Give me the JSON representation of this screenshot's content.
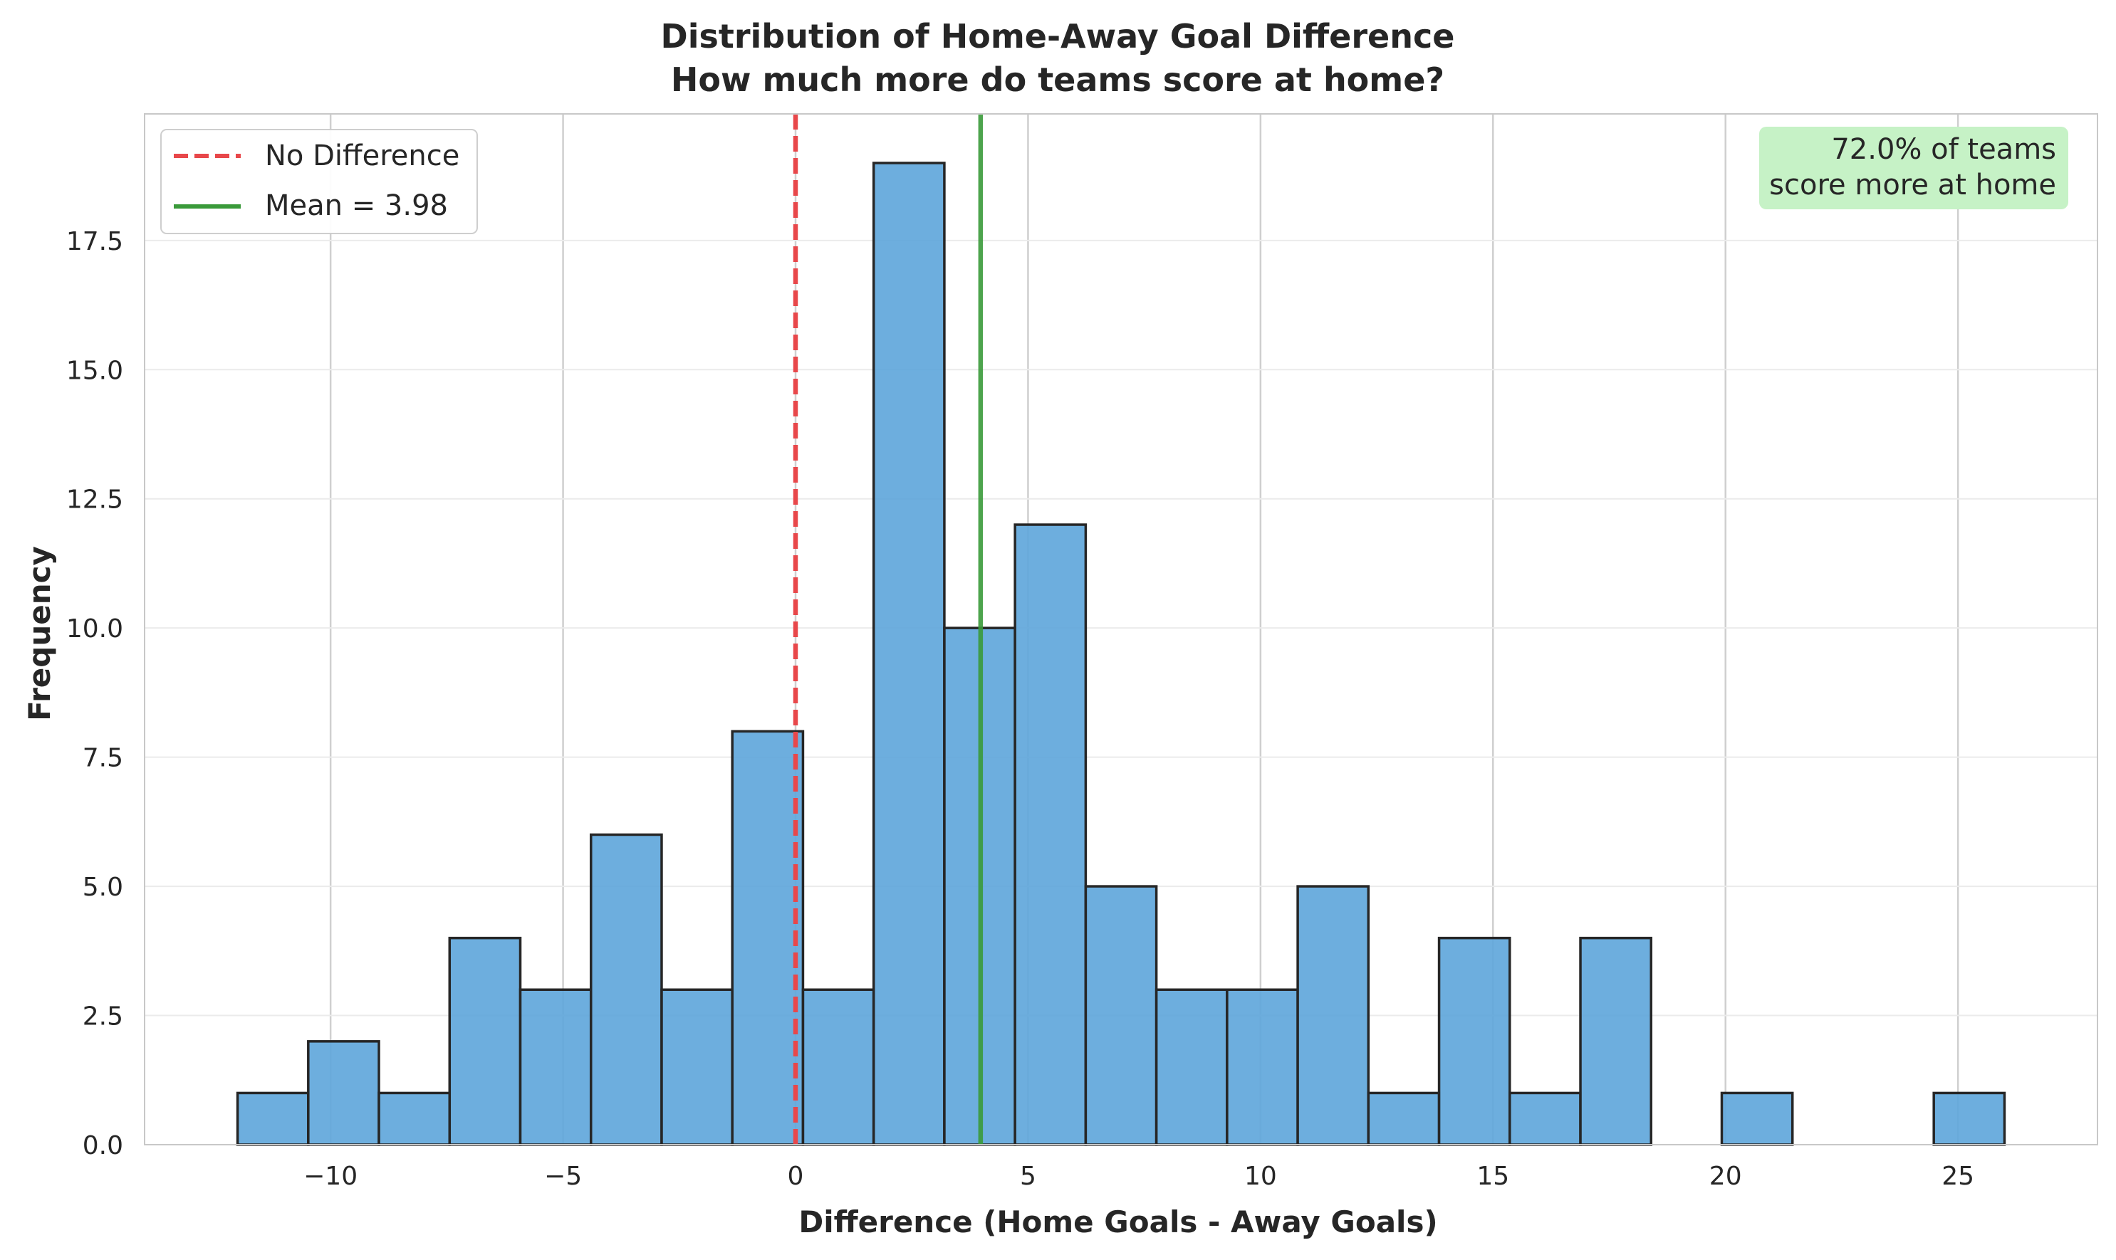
{
  "chart_data": {
    "type": "bar",
    "title_line1": "Distribution of Home-Away Goal Difference",
    "title_line2": "How much more do teams score at home?",
    "xlabel": "Difference (Home Goals - Away Goals)",
    "ylabel": "Frequency",
    "xlim": [
      -14,
      28
    ],
    "ylim": [
      0,
      19.95
    ],
    "x_ticks": [
      -10,
      -5,
      0,
      5,
      10,
      15,
      20,
      25
    ],
    "x_tick_labels": [
      "−10",
      "−5",
      "0",
      "5",
      "10",
      "15",
      "20",
      "25"
    ],
    "y_ticks": [
      0,
      2.5,
      5,
      7.5,
      10,
      12.5,
      15,
      17.5
    ],
    "y_tick_labels": [
      "0.0",
      "2.5",
      "5.0",
      "7.5",
      "10.0",
      "12.5",
      "15.0",
      "17.5"
    ],
    "bin_start": -12,
    "bin_width": 1.52,
    "counts": [
      1,
      2,
      1,
      4,
      3,
      6,
      3,
      8,
      3,
      19,
      10,
      12,
      5,
      3,
      3,
      5,
      1,
      4,
      1,
      4,
      0,
      1,
      0,
      0,
      1
    ],
    "bar_color": "#5DA5DA",
    "bar_edge_color": "#262626",
    "reference_lines": [
      {
        "name": "No Difference",
        "x": 0,
        "color": "#E8474A",
        "style": "dashed"
      },
      {
        "name": "Mean = 3.98",
        "x": 3.98,
        "color": "#3A9A3A",
        "style": "solid"
      }
    ],
    "legend": {
      "position": "top-left",
      "items": [
        {
          "label": "No Difference",
          "color": "#E8474A",
          "style": "dashed"
        },
        {
          "label": "Mean = 3.98",
          "color": "#3A9A3A",
          "style": "solid"
        }
      ]
    },
    "annotation": {
      "line1": "72.0% of teams",
      "line2": "score more at home",
      "background": "#C6F2C6",
      "position": "top-right"
    },
    "grid": true
  }
}
